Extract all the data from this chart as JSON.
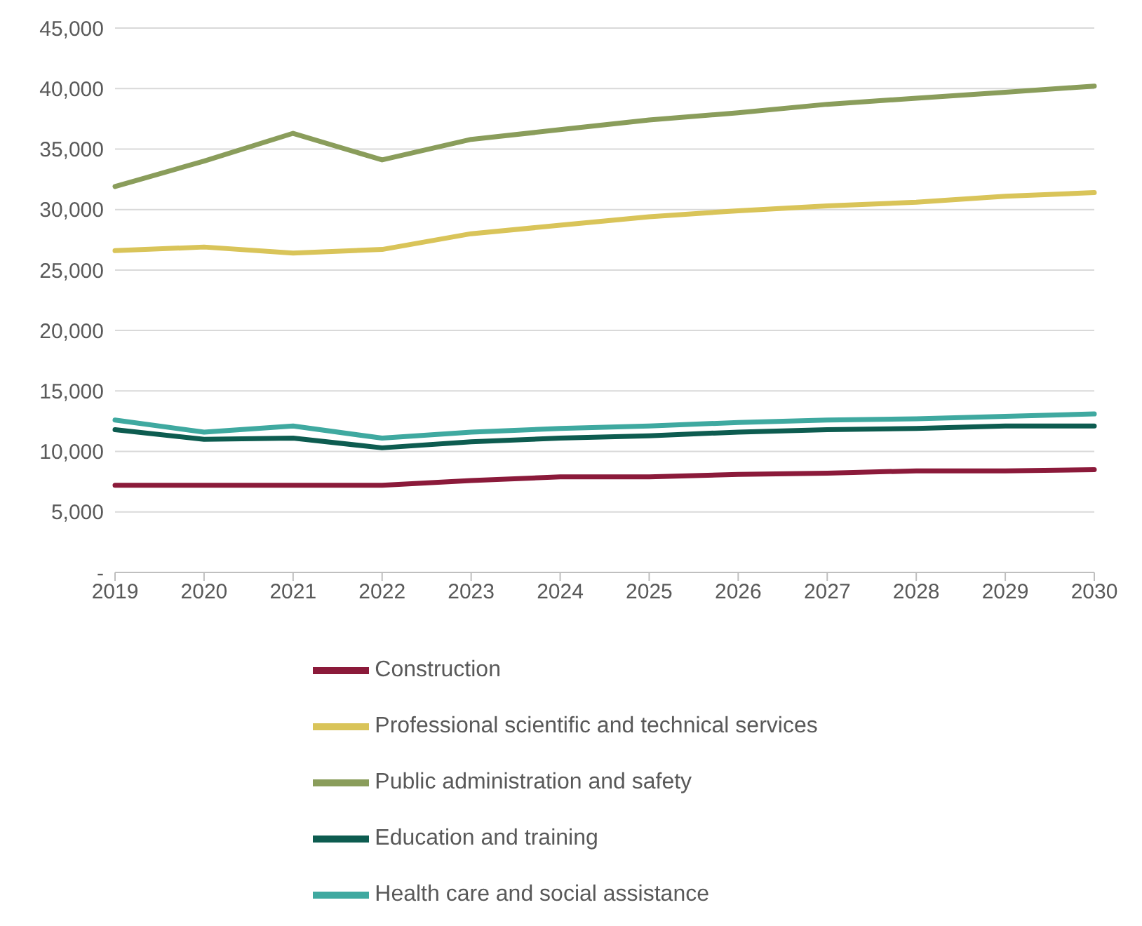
{
  "chart_data": {
    "type": "line",
    "categories": [
      "2019",
      "2020",
      "2021",
      "2022",
      "2023",
      "2024",
      "2025",
      "2026",
      "2027",
      "2028",
      "2029",
      "2030"
    ],
    "series": [
      {
        "name": "Construction",
        "color": "#8b1a3a",
        "values": [
          7200,
          7200,
          7200,
          7200,
          7600,
          7900,
          7900,
          8100,
          8200,
          8400,
          8400,
          8500
        ]
      },
      {
        "name": "Professional scientific and technical services",
        "color": "#d9c459",
        "values": [
          26600,
          26900,
          26400,
          26700,
          28000,
          28700,
          29400,
          29900,
          30300,
          30600,
          31100,
          31400
        ]
      },
      {
        "name": "Public administration and safety",
        "color": "#8a9d5b",
        "values": [
          31900,
          34000,
          36300,
          34100,
          35800,
          36600,
          37400,
          38000,
          38700,
          39200,
          39700,
          40200
        ]
      },
      {
        "name": "Education and training",
        "color": "#0d5c50",
        "values": [
          11800,
          11000,
          11100,
          10300,
          10800,
          11100,
          11300,
          11600,
          11800,
          11900,
          12100,
          12100
        ]
      },
      {
        "name": "Health care and social assistance",
        "color": "#3fa9a0",
        "values": [
          12600,
          11600,
          12100,
          11100,
          11600,
          11900,
          12100,
          12400,
          12600,
          12700,
          12900,
          13100
        ]
      }
    ],
    "ylim": [
      0,
      45000
    ],
    "yticks": [
      {
        "value": 0,
        "label": "-"
      },
      {
        "value": 5000,
        "label": "5,000"
      },
      {
        "value": 10000,
        "label": "10,000"
      },
      {
        "value": 15000,
        "label": "15,000"
      },
      {
        "value": 20000,
        "label": "20,000"
      },
      {
        "value": 25000,
        "label": "25,000"
      },
      {
        "value": 30000,
        "label": "30,000"
      },
      {
        "value": 35000,
        "label": "35,000"
      },
      {
        "value": 40000,
        "label": "40,000"
      },
      {
        "value": 45000,
        "label": "45,000"
      }
    ],
    "grid": "y",
    "legend": "bottom",
    "marker": "none",
    "line_style": "solid"
  }
}
